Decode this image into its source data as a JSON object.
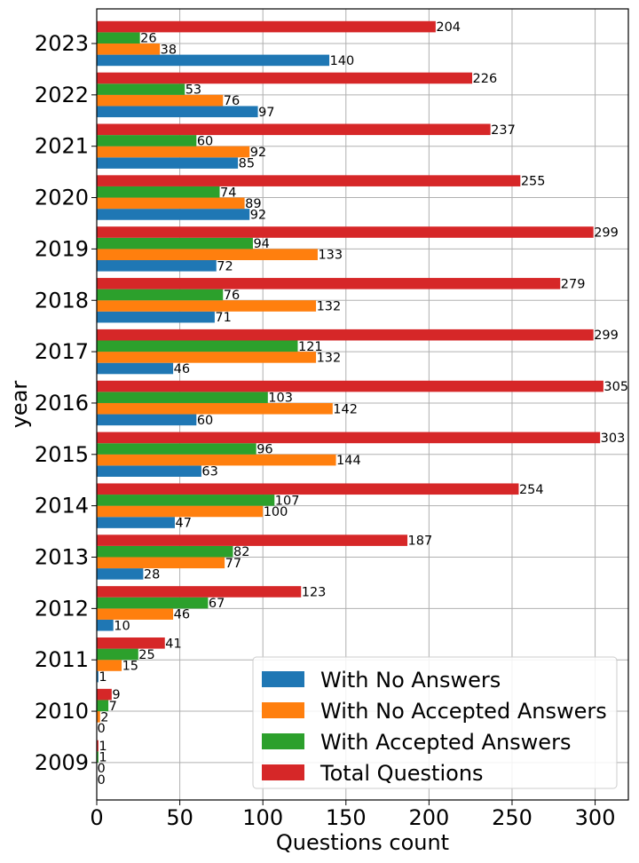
{
  "chart_data": {
    "type": "bar",
    "orientation": "horizontal",
    "xlabel": "Questions count",
    "ylabel": "year",
    "xlim": [
      0,
      320
    ],
    "xticks": [
      0,
      50,
      100,
      150,
      200,
      250,
      300
    ],
    "grid": true,
    "legend_position": "bottom-right",
    "categories": [
      "2009",
      "2010",
      "2011",
      "2012",
      "2013",
      "2014",
      "2015",
      "2016",
      "2017",
      "2018",
      "2019",
      "2020",
      "2021",
      "2022",
      "2023"
    ],
    "series": [
      {
        "name": "With No Answers",
        "color": "#1f77b4",
        "values": [
          0,
          0,
          1,
          10,
          28,
          47,
          63,
          60,
          46,
          71,
          72,
          92,
          85,
          97,
          140
        ]
      },
      {
        "name": "With No Accepted Answers",
        "color": "#ff7f0e",
        "values": [
          0,
          2,
          15,
          46,
          77,
          100,
          144,
          142,
          132,
          132,
          133,
          89,
          92,
          76,
          38
        ]
      },
      {
        "name": "With Accepted Answers",
        "color": "#2ca02c",
        "values": [
          1,
          7,
          25,
          67,
          82,
          107,
          96,
          103,
          121,
          76,
          94,
          74,
          60,
          53,
          26
        ]
      },
      {
        "name": "Total Questions",
        "color": "#d62728",
        "values": [
          1,
          9,
          41,
          123,
          187,
          254,
          303,
          305,
          299,
          279,
          299,
          255,
          237,
          226,
          204
        ]
      }
    ]
  }
}
